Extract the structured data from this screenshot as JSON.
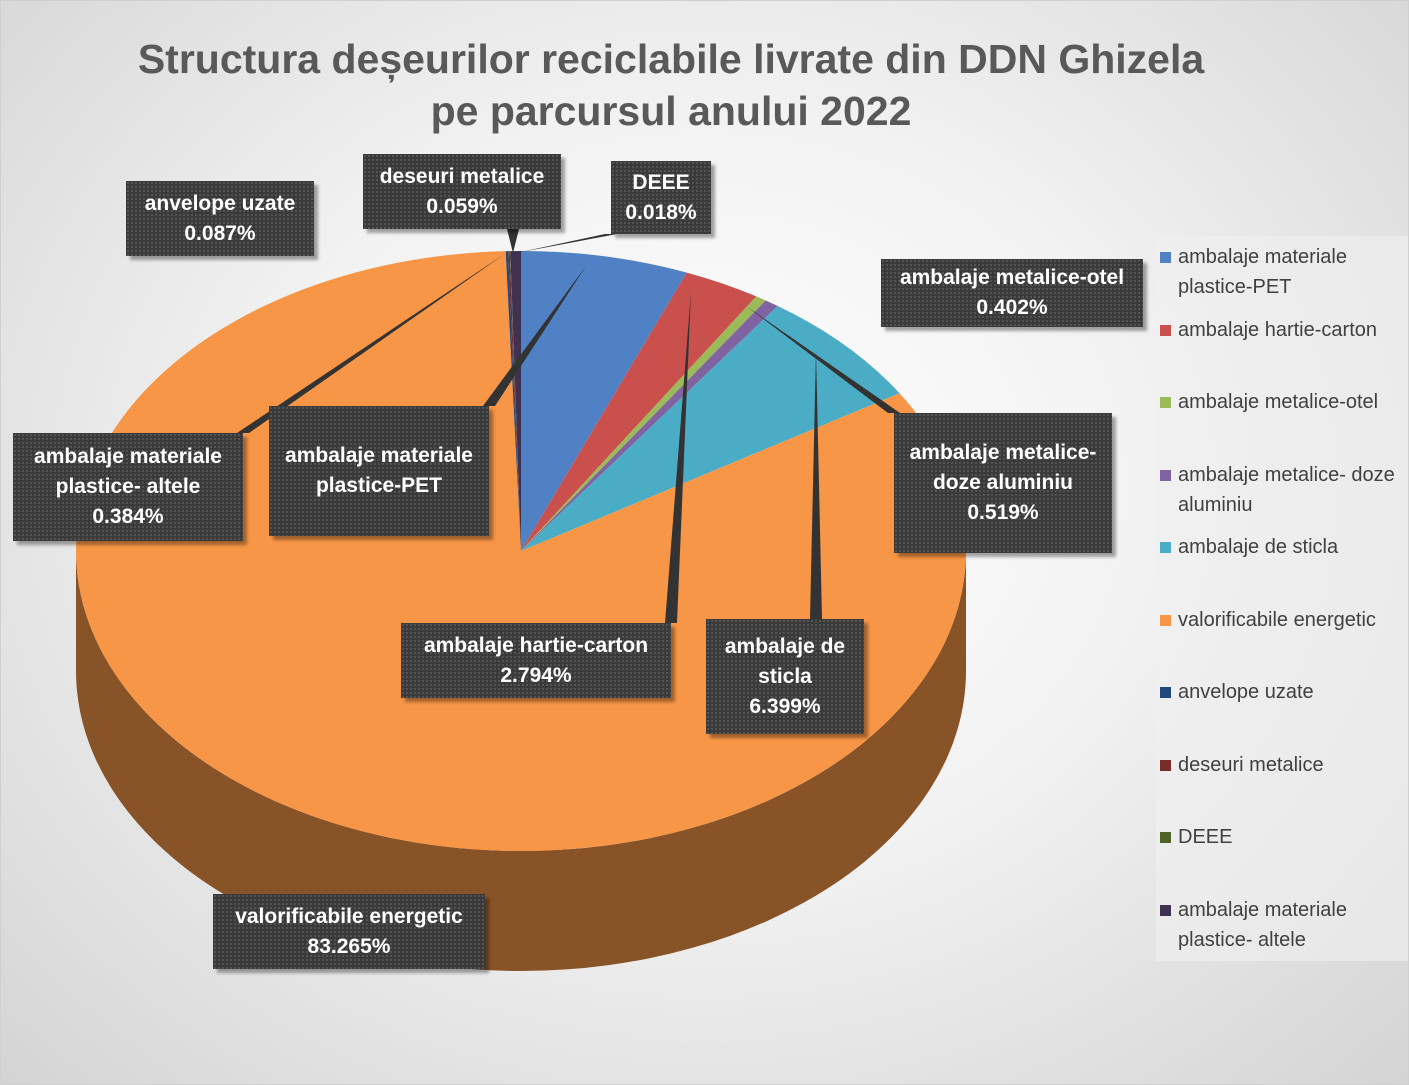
{
  "chart_data": {
    "type": "pie",
    "three_d": true,
    "title": "Structura deșeurilor reciclabile livrate din DDN Ghizela pe parcursul anului 2022",
    "categories": [
      "ambalaje materiale plastice-PET",
      "ambalaje hartie-carton",
      "ambalaje metalice-otel",
      "ambalaje metalice- doze aluminiu",
      "ambalaje de sticla",
      "valorificabile energetic",
      "anvelope uzate",
      "deseuri metalice",
      "DEEE",
      "ambalaje materiale plastice- altele"
    ],
    "values": [
      6.073,
      2.794,
      0.402,
      0.519,
      6.399,
      83.265,
      0.087,
      0.059,
      0.018,
      0.384
    ],
    "value_labels": [
      null,
      "2.794%",
      "0.402%",
      "0.519%",
      "6.399%",
      "83.265%",
      "0.087%",
      "0.059%",
      "0.018%",
      "0.384%"
    ],
    "colors": [
      "#4f81c4",
      "#c9504c",
      "#9bbb59",
      "#8064a2",
      "#4bacc6",
      "#f79646",
      "#1f497d",
      "#772c2a",
      "#4f6228",
      "#3f3151"
    ],
    "legend": "right"
  }
}
